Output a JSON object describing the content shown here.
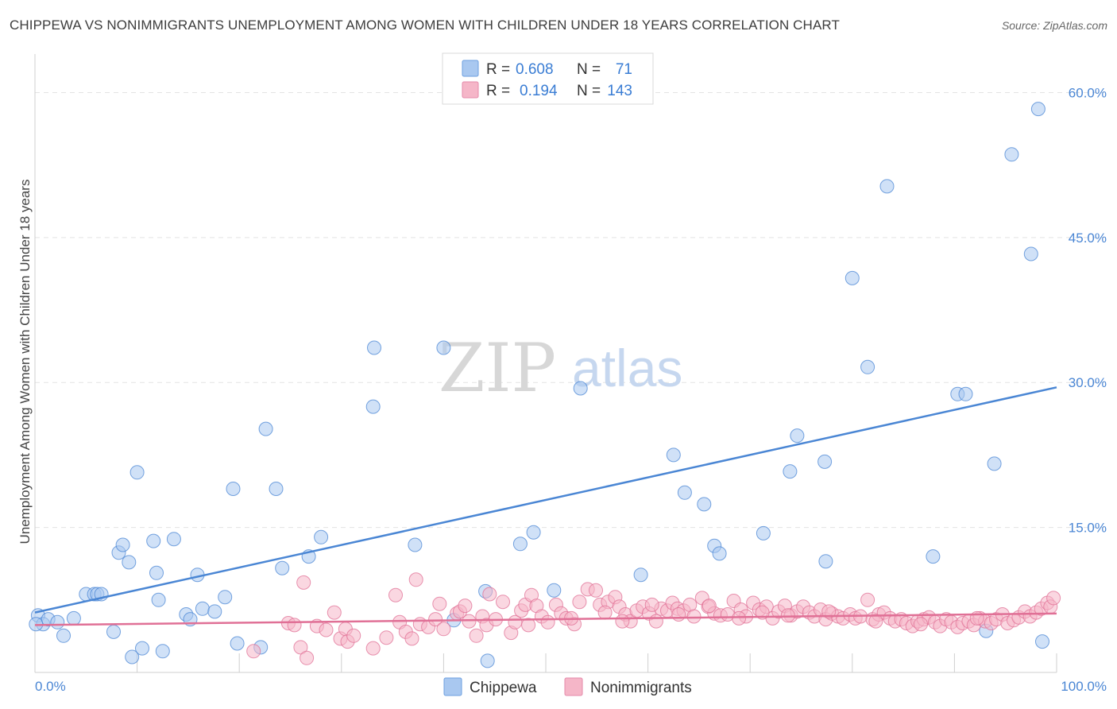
{
  "title": "CHIPPEWA VS NONIMMIGRANTS UNEMPLOYMENT AMONG WOMEN WITH CHILDREN UNDER 18 YEARS CORRELATION CHART",
  "source": "Source: ZipAtlas.com",
  "watermark": {
    "part1": "ZIP",
    "part2": "atlas"
  },
  "legend_top": {
    "rows": [
      {
        "r_label": "R = ",
        "r_value": "0.608",
        "n_label": "N = ",
        "n_value": "71",
        "color": "#a9c8f0"
      },
      {
        "r_label": "R = ",
        "r_value": "0.194",
        "n_label": "N = ",
        "n_value": "143",
        "color": "#f5b6c8"
      }
    ]
  },
  "legend_bottom": [
    {
      "label": "Chippewa",
      "color": "#a9c8f0"
    },
    {
      "label": "Nonimmigrants",
      "color": "#f5b6c8"
    }
  ],
  "chart_data": {
    "type": "scatter",
    "ylabel": "Unemployment Among Women with Children Under 18 years",
    "x_tick_labels": [
      "0.0%",
      "100.0%"
    ],
    "y_tick_labels": [
      "15.0%",
      "30.0%",
      "45.0%",
      "60.0%"
    ],
    "y_ticks": [
      15,
      30,
      45,
      60
    ],
    "xlim": [
      0,
      100
    ],
    "ylim": [
      0,
      63
    ],
    "grid": "horizontal dashed",
    "series": [
      {
        "name": "Chippewa",
        "color": "#4a86d4",
        "fill": "#a9c8f0",
        "trend": {
          "x": [
            0,
            100
          ],
          "y": [
            6.2,
            29.5
          ]
        },
        "points": [
          [
            0.3,
            5.9
          ],
          [
            0.8,
            5.0
          ],
          [
            1.3,
            5.5
          ],
          [
            2.2,
            5.2
          ],
          [
            2.8,
            3.8
          ],
          [
            3.8,
            5.6
          ],
          [
            5.0,
            8.1
          ],
          [
            5.8,
            8.1
          ],
          [
            6.1,
            8.1
          ],
          [
            6.5,
            8.1
          ],
          [
            7.7,
            4.2
          ],
          [
            8.2,
            12.4
          ],
          [
            8.6,
            13.2
          ],
          [
            9.2,
            11.4
          ],
          [
            9.5,
            1.6
          ],
          [
            10.0,
            20.7
          ],
          [
            10.5,
            2.5
          ],
          [
            11.6,
            13.6
          ],
          [
            11.9,
            10.3
          ],
          [
            12.1,
            7.5
          ],
          [
            12.5,
            2.2
          ],
          [
            13.6,
            13.8
          ],
          [
            14.8,
            6.0
          ],
          [
            15.2,
            5.5
          ],
          [
            15.9,
            10.1
          ],
          [
            16.4,
            6.6
          ],
          [
            17.6,
            6.3
          ],
          [
            18.6,
            7.8
          ],
          [
            19.4,
            19.0
          ],
          [
            19.8,
            3.0
          ],
          [
            22.1,
            2.6
          ],
          [
            22.6,
            25.2
          ],
          [
            23.6,
            19.0
          ],
          [
            24.2,
            10.8
          ],
          [
            26.8,
            12.0
          ],
          [
            28.0,
            14.0
          ],
          [
            33.1,
            27.5
          ],
          [
            33.2,
            33.6
          ],
          [
            37.2,
            13.2
          ],
          [
            40.0,
            33.6
          ],
          [
            41.0,
            5.4
          ],
          [
            44.1,
            8.4
          ],
          [
            44.3,
            1.2
          ],
          [
            47.5,
            13.3
          ],
          [
            48.8,
            14.5
          ],
          [
            50.8,
            8.5
          ],
          [
            53.4,
            29.4
          ],
          [
            59.3,
            10.1
          ],
          [
            62.5,
            22.5
          ],
          [
            63.6,
            18.6
          ],
          [
            65.5,
            17.4
          ],
          [
            66.5,
            13.1
          ],
          [
            67.0,
            12.3
          ],
          [
            71.3,
            14.4
          ],
          [
            73.9,
            20.8
          ],
          [
            74.6,
            24.5
          ],
          [
            77.3,
            21.8
          ],
          [
            77.4,
            11.5
          ],
          [
            80.0,
            40.8
          ],
          [
            81.5,
            31.6
          ],
          [
            83.4,
            50.3
          ],
          [
            87.9,
            12.0
          ],
          [
            90.3,
            28.8
          ],
          [
            91.1,
            28.8
          ],
          [
            93.1,
            4.3
          ],
          [
            93.9,
            21.6
          ],
          [
            95.6,
            53.6
          ],
          [
            97.5,
            43.3
          ],
          [
            98.2,
            58.3
          ],
          [
            98.6,
            3.2
          ],
          [
            0.1,
            5.0
          ]
        ]
      },
      {
        "name": "Nonimmigrants",
        "color": "#e07096",
        "fill": "#f5b6c8",
        "trend": {
          "x": [
            0,
            100
          ],
          "y": [
            4.9,
            6.1
          ]
        },
        "points": [
          [
            21.4,
            2.2
          ],
          [
            24.8,
            5.1
          ],
          [
            25.4,
            4.9
          ],
          [
            26.0,
            2.6
          ],
          [
            26.3,
            9.3
          ],
          [
            26.6,
            1.5
          ],
          [
            27.6,
            4.8
          ],
          [
            28.5,
            4.4
          ],
          [
            29.3,
            6.2
          ],
          [
            29.9,
            3.5
          ],
          [
            30.4,
            4.5
          ],
          [
            30.6,
            3.2
          ],
          [
            31.2,
            3.8
          ],
          [
            33.1,
            2.5
          ],
          [
            34.4,
            3.6
          ],
          [
            35.3,
            8.0
          ],
          [
            35.7,
            5.2
          ],
          [
            36.3,
            4.2
          ],
          [
            36.9,
            3.5
          ],
          [
            37.3,
            9.6
          ],
          [
            37.7,
            5.0
          ],
          [
            38.5,
            4.7
          ],
          [
            39.2,
            5.5
          ],
          [
            39.6,
            7.1
          ],
          [
            40.0,
            4.5
          ],
          [
            41.3,
            6.1
          ],
          [
            41.6,
            6.3
          ],
          [
            42.1,
            6.9
          ],
          [
            42.5,
            5.3
          ],
          [
            43.2,
            3.8
          ],
          [
            43.8,
            5.8
          ],
          [
            44.2,
            4.9
          ],
          [
            44.5,
            8.1
          ],
          [
            45.1,
            5.5
          ],
          [
            45.8,
            7.3
          ],
          [
            46.6,
            4.1
          ],
          [
            47.0,
            5.2
          ],
          [
            47.6,
            6.4
          ],
          [
            48.0,
            7.0
          ],
          [
            48.6,
            8.0
          ],
          [
            49.1,
            6.9
          ],
          [
            49.6,
            5.8
          ],
          [
            50.2,
            5.2
          ],
          [
            51.0,
            7.0
          ],
          [
            51.5,
            6.1
          ],
          [
            52.0,
            5.6
          ],
          [
            52.8,
            5.0
          ],
          [
            53.3,
            7.3
          ],
          [
            54.1,
            8.6
          ],
          [
            54.9,
            8.5
          ],
          [
            55.3,
            7.0
          ],
          [
            56.1,
            7.3
          ],
          [
            56.8,
            7.8
          ],
          [
            57.2,
            6.8
          ],
          [
            57.8,
            6.0
          ],
          [
            58.3,
            5.3
          ],
          [
            58.9,
            6.4
          ],
          [
            59.5,
            6.8
          ],
          [
            60.1,
            6.1
          ],
          [
            60.8,
            5.3
          ],
          [
            61.3,
            6.6
          ],
          [
            61.9,
            6.4
          ],
          [
            62.4,
            7.2
          ],
          [
            62.9,
            6.6
          ],
          [
            63.5,
            6.4
          ],
          [
            64.1,
            7.0
          ],
          [
            64.5,
            5.8
          ],
          [
            65.3,
            7.7
          ],
          [
            65.9,
            6.8
          ],
          [
            66.5,
            6.1
          ],
          [
            67.1,
            5.9
          ],
          [
            67.8,
            6.0
          ],
          [
            68.4,
            7.4
          ],
          [
            69.1,
            6.5
          ],
          [
            69.6,
            5.8
          ],
          [
            70.3,
            7.2
          ],
          [
            70.9,
            6.5
          ],
          [
            71.6,
            6.8
          ],
          [
            72.2,
            5.6
          ],
          [
            72.8,
            6.3
          ],
          [
            73.4,
            6.9
          ],
          [
            74.0,
            5.9
          ],
          [
            74.6,
            6.3
          ],
          [
            75.2,
            6.8
          ],
          [
            75.8,
            6.2
          ],
          [
            76.3,
            5.8
          ],
          [
            76.9,
            6.5
          ],
          [
            77.4,
            5.5
          ],
          [
            78.0,
            6.1
          ],
          [
            78.6,
            5.8
          ],
          [
            79.1,
            5.6
          ],
          [
            79.8,
            6.0
          ],
          [
            80.3,
            5.6
          ],
          [
            80.8,
            5.8
          ],
          [
            81.5,
            7.5
          ],
          [
            82.0,
            5.5
          ],
          [
            82.6,
            6.0
          ],
          [
            83.1,
            6.2
          ],
          [
            83.7,
            5.6
          ],
          [
            84.2,
            5.3
          ],
          [
            84.8,
            5.5
          ],
          [
            85.3,
            5.1
          ],
          [
            85.9,
            4.8
          ],
          [
            86.4,
            5.3
          ],
          [
            87.0,
            5.5
          ],
          [
            87.5,
            5.7
          ],
          [
            88.1,
            5.2
          ],
          [
            88.6,
            4.8
          ],
          [
            89.2,
            5.5
          ],
          [
            89.7,
            5.2
          ],
          [
            90.3,
            4.7
          ],
          [
            90.8,
            5.1
          ],
          [
            91.4,
            5.3
          ],
          [
            91.9,
            4.9
          ],
          [
            92.5,
            5.6
          ],
          [
            93.0,
            5.3
          ],
          [
            93.6,
            5.1
          ],
          [
            94.1,
            5.5
          ],
          [
            94.7,
            6.0
          ],
          [
            95.2,
            5.1
          ],
          [
            95.8,
            5.4
          ],
          [
            96.3,
            5.7
          ],
          [
            96.9,
            6.3
          ],
          [
            97.4,
            5.8
          ],
          [
            98.0,
            6.2
          ],
          [
            98.5,
            6.6
          ],
          [
            99.1,
            7.2
          ],
          [
            99.4,
            6.8
          ],
          [
            99.7,
            7.7
          ],
          [
            55.8,
            6.2
          ],
          [
            48.3,
            4.9
          ],
          [
            52.5,
            5.6
          ],
          [
            57.5,
            5.3
          ],
          [
            60.4,
            7.0
          ],
          [
            63.0,
            6.0
          ],
          [
            66.0,
            6.9
          ],
          [
            68.9,
            5.6
          ],
          [
            71.2,
            6.2
          ],
          [
            73.7,
            5.9
          ],
          [
            77.7,
            6.3
          ],
          [
            82.3,
            5.3
          ],
          [
            86.7,
            5.0
          ],
          [
            92.2,
            5.6
          ]
        ]
      }
    ]
  }
}
